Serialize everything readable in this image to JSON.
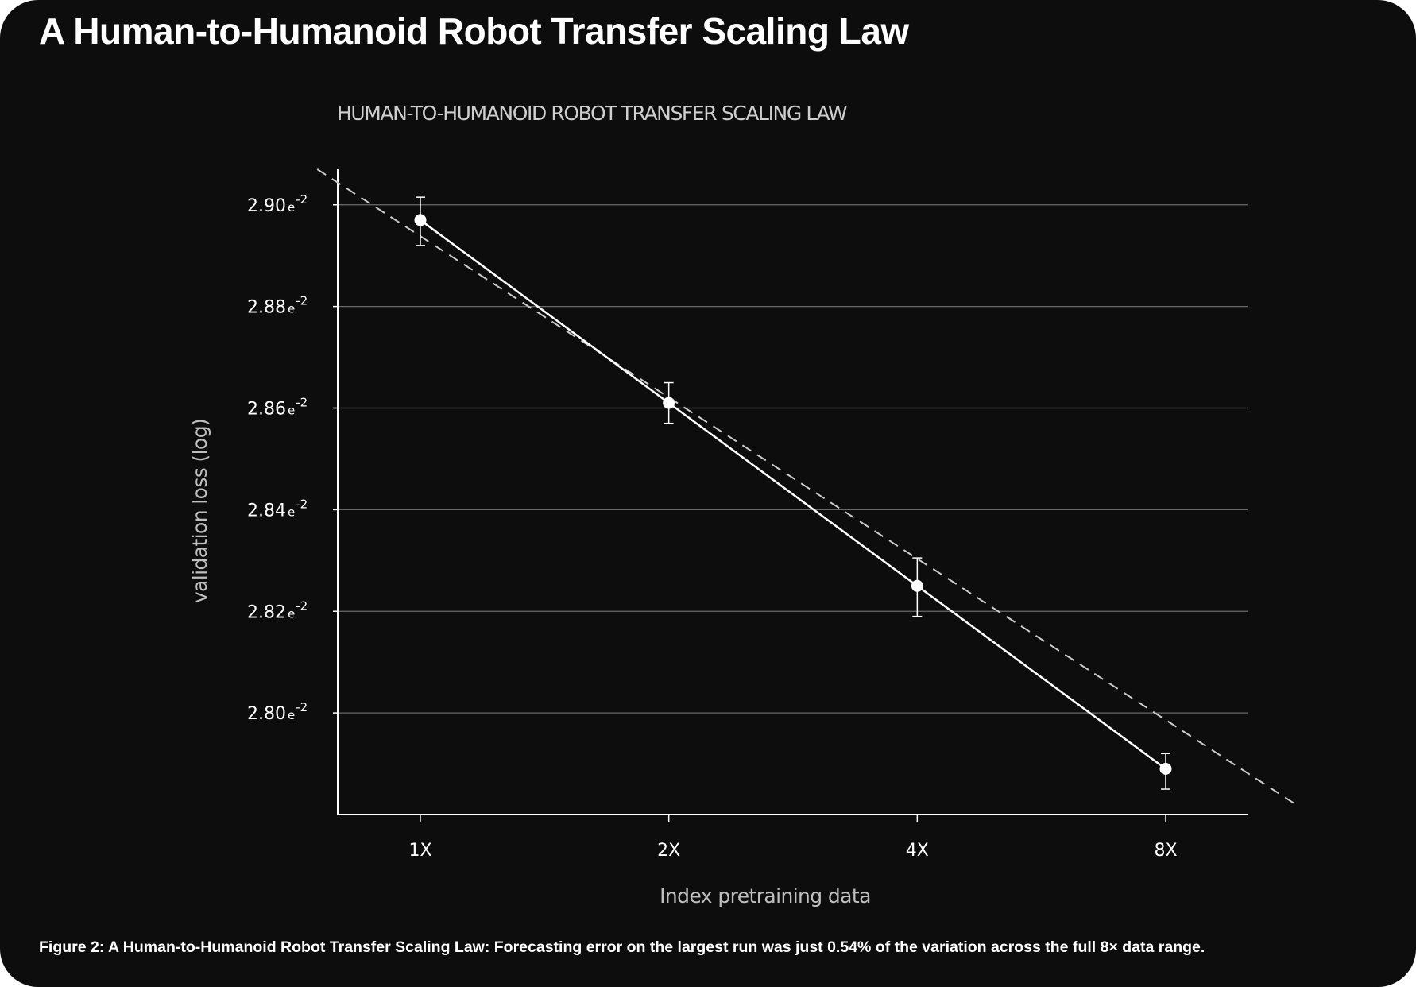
{
  "header": {
    "title": "A Human-to-Humanoid Robot Transfer Scaling Law"
  },
  "caption": "Figure 2: A Human-to-Humanoid Robot Transfer Scaling Law: Forecasting error on the largest run was just 0.54% of the variation across the full 8× data range.",
  "colors": {
    "background": "#0d0d0d",
    "line": "#ffffff",
    "fit_line": "#cccccc",
    "grid": "#7a7a7a"
  },
  "chart_data": {
    "type": "line",
    "title": "HUMAN-TO-HUMANOID ROBOT TRANSFER SCALING LAW",
    "xlabel": "Index pretraining data",
    "ylabel": "validation loss (log)",
    "x_scale": "log2",
    "categories": [
      "1X",
      "2X",
      "4X",
      "8X"
    ],
    "x": [
      1,
      2,
      4,
      8
    ],
    "y_ticks": [
      {
        "value": 2.8,
        "label": "2.80",
        "exp": "e",
        "sup": "-2"
      },
      {
        "value": 2.82,
        "label": "2.82",
        "exp": "e",
        "sup": "-2"
      },
      {
        "value": 2.84,
        "label": "2.84",
        "exp": "e",
        "sup": "-2"
      },
      {
        "value": 2.86,
        "label": "2.86",
        "exp": "e",
        "sup": "-2"
      },
      {
        "value": 2.88,
        "label": "2.88",
        "exp": "e",
        "sup": "-2"
      },
      {
        "value": 2.9,
        "label": "2.90",
        "exp": "e",
        "sup": "-2"
      }
    ],
    "ylim": [
      2.78,
      2.907
    ],
    "grid": "horizontal",
    "series": [
      {
        "values": [
          2.897,
          2.861,
          2.825,
          2.789
        ],
        "error_low": [
          2.892,
          2.857,
          2.819,
          2.785
        ],
        "error_high": [
          2.9015,
          2.865,
          2.8305,
          2.792
        ],
        "style": "solid-with-markers"
      }
    ],
    "fit_line": {
      "style": "dashed",
      "x_range": [
        0.75,
        11.5
      ],
      "y_range": [
        2.907,
        2.782
      ]
    }
  }
}
